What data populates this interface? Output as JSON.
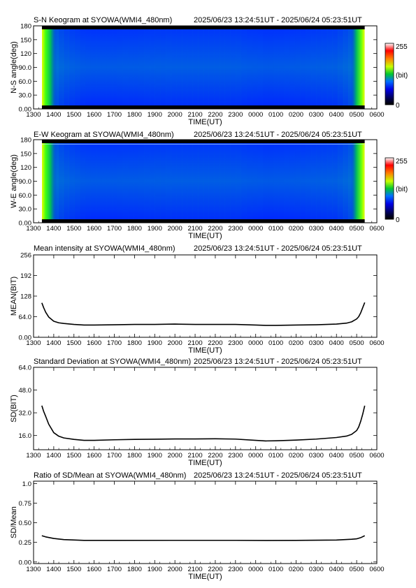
{
  "panels": [
    {
      "title": "S-N Keogram at SYOWA(WMI4_480nm)",
      "time_range": "2025/06/23 13:24:51UT - 2025/06/24 05:23:51UT"
    },
    {
      "title": "E-W Keogram at SYOWA(WMI4_480nm)",
      "time_range": "2025/06/23 13:24:51UT - 2025/06/24 05:23:51UT"
    },
    {
      "title": "Mean intensity at SYOWA(WMI4_480nm)",
      "time_range": "2025/06/23 13:24:51UT - 2025/06/24 05:23:51UT"
    },
    {
      "title": "Standard Deviation at SYOWA(WMI4_480nm)",
      "time_range": "2025/06/23 13:24:51UT - 2025/06/24 05:23:51UT"
    },
    {
      "title": "Ratio of SD/Mean at SYOWA(WMI4_480nm)",
      "time_range": "2025/06/23 13:24:51UT - 2025/06/24 05:23:51UT"
    }
  ],
  "colorbar": {
    "max_label": "255",
    "min_label": "0",
    "unit_label": "(bit)"
  },
  "chart_data": [
    {
      "type": "heatmap",
      "title": "S-N Keogram at SYOWA(WMI4_480nm)",
      "xlabel": "TIME(UT)",
      "ylabel": "N-S angle(deg)",
      "xticks": [
        "1300",
        "1400",
        "1500",
        "1600",
        "1700",
        "1800",
        "1900",
        "2000",
        "2100",
        "2200",
        "2300",
        "0000",
        "0100",
        "0200",
        "0300",
        "0400",
        "0500",
        "0600"
      ],
      "yticks": [
        "0.00",
        "30.0",
        "60.0",
        "90.0",
        "120",
        "150",
        "180"
      ],
      "ylim": [
        0,
        180
      ],
      "x_hours_range": [
        13.0,
        30.0
      ],
      "data_time_range_hours": [
        13.414,
        29.398
      ],
      "colorbar_range": [
        0,
        255
      ],
      "intensity_profile": {
        "x_hours": [
          13.41,
          13.6,
          14.0,
          14.5,
          15.5,
          17,
          20,
          23,
          24.5,
          26,
          28,
          28.7,
          29.0,
          29.2,
          29.4
        ],
        "values": [
          125,
          90,
          55,
          45,
          38,
          38,
          40,
          40,
          37,
          38,
          42,
          50,
          70,
          110,
          130
        ]
      }
    },
    {
      "type": "heatmap",
      "title": "E-W Keogram at SYOWA(WMI4_480nm)",
      "xlabel": "TIME(UT)",
      "ylabel": "W-E angle(deg)",
      "xticks": [
        "1300",
        "1400",
        "1500",
        "1600",
        "1700",
        "1800",
        "1900",
        "2000",
        "2100",
        "2200",
        "2300",
        "0000",
        "0100",
        "0200",
        "0300",
        "0400",
        "0500",
        "0600"
      ],
      "yticks": [
        "0.00",
        "30.0",
        "60.0",
        "90.0",
        "120",
        "150",
        "180"
      ],
      "ylim": [
        0,
        180
      ],
      "x_hours_range": [
        13.0,
        30.0
      ],
      "data_time_range_hours": [
        13.414,
        29.398
      ],
      "colorbar_range": [
        0,
        255
      ],
      "intensity_profile": {
        "x_hours": [
          13.41,
          13.6,
          14.0,
          14.5,
          15.5,
          17,
          20,
          23,
          24.5,
          26,
          28,
          28.7,
          29.0,
          29.2,
          29.4
        ],
        "values": [
          125,
          90,
          55,
          45,
          38,
          38,
          40,
          40,
          37,
          38,
          42,
          50,
          70,
          110,
          130
        ]
      }
    },
    {
      "type": "line",
      "title": "Mean intensity at SYOWA(WMI4_480nm)",
      "xlabel": "TIME(UT)",
      "ylabel": "MEAN(BIT)",
      "xticks": [
        "1300",
        "1400",
        "1500",
        "1600",
        "1700",
        "1800",
        "1900",
        "2000",
        "2100",
        "2200",
        "2300",
        "0000",
        "0100",
        "0200",
        "0300",
        "0400",
        "0500",
        "0600"
      ],
      "yticks": [
        "0.00",
        "64.0",
        "128",
        "192",
        "256"
      ],
      "ylim": [
        0,
        256
      ],
      "x_hours": [
        13.41,
        13.5,
        13.6,
        13.75,
        14.0,
        14.25,
        14.5,
        15.0,
        15.5,
        16,
        17,
        18,
        19,
        20,
        21,
        22,
        23,
        24,
        24.5,
        25,
        26,
        27,
        28,
        28.5,
        28.75,
        29.0,
        29.1,
        29.2,
        29.3,
        29.4
      ],
      "values": [
        107,
        92,
        78,
        63,
        50,
        45,
        43,
        40,
        38,
        38,
        39,
        40,
        40,
        41,
        40,
        40,
        40,
        38,
        37,
        37,
        38,
        39,
        41,
        44,
        48,
        57,
        64,
        76,
        92,
        108
      ]
    },
    {
      "type": "line",
      "title": "Standard Deviation at SYOWA(WMI4_480nm)",
      "xlabel": "TIME(UT)",
      "ylabel": "SD(BIT)",
      "xticks": [
        "1300",
        "1400",
        "1500",
        "1600",
        "1700",
        "1800",
        "1900",
        "2000",
        "2100",
        "2200",
        "2300",
        "0000",
        "0100",
        "0200",
        "0300",
        "0400",
        "0500",
        "0600"
      ],
      "yticks": [
        "16.0",
        "32.0",
        "48.0",
        "64.0"
      ],
      "ylim": [
        6,
        64
      ],
      "x_hours": [
        13.41,
        13.5,
        13.6,
        13.75,
        14.0,
        14.25,
        14.5,
        15.0,
        15.5,
        16,
        17,
        18,
        19,
        20,
        21,
        22,
        23,
        24,
        24.5,
        25,
        26,
        27,
        28,
        28.5,
        28.75,
        29.0,
        29.1,
        29.2,
        29.3,
        29.4
      ],
      "values": [
        37,
        33,
        29.5,
        24,
        18,
        15.5,
        14.3,
        13.3,
        12.6,
        12.6,
        13,
        13.3,
        13.4,
        13.6,
        13.6,
        13.7,
        13.5,
        12.6,
        12.2,
        12.3,
        12.8,
        13.5,
        14.6,
        15.6,
        16.8,
        19.5,
        22,
        26,
        31,
        37
      ]
    },
    {
      "type": "line",
      "title": "Ratio of SD/Mean at SYOWA(WMI4_480nm)",
      "xlabel": "TIME(UT)",
      "ylabel": "SD/Mean",
      "xticks": [
        "1300",
        "1400",
        "1500",
        "1600",
        "1700",
        "1800",
        "1900",
        "2000",
        "2100",
        "2200",
        "2300",
        "0000",
        "0100",
        "0200",
        "0300",
        "0400",
        "0500",
        "0600"
      ],
      "yticks": [
        "0.00",
        "0.25",
        "0.50",
        "0.75",
        "1.0"
      ],
      "ylim": [
        -0.02,
        1.03
      ],
      "x_hours": [
        13.41,
        13.6,
        14.0,
        14.5,
        15.5,
        17,
        20,
        23,
        24.5,
        26,
        28,
        28.75,
        29.0,
        29.2,
        29.4
      ],
      "values": [
        0.335,
        0.32,
        0.3,
        0.285,
        0.275,
        0.275,
        0.276,
        0.276,
        0.274,
        0.275,
        0.28,
        0.29,
        0.295,
        0.31,
        0.335
      ]
    }
  ]
}
